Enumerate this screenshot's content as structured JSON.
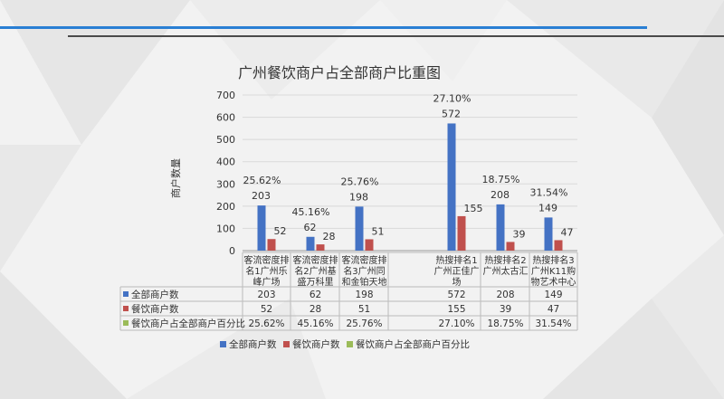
{
  "chart_data": {
    "type": "bar",
    "title": "广州餐饮商户占全部商户比重图",
    "ylabel": "商户数量",
    "ylim": [
      0,
      700
    ],
    "yticks": [
      0,
      100,
      200,
      300,
      400,
      500,
      600,
      700
    ],
    "grid": true,
    "legend_position": "bottom",
    "categories": [
      [
        "客流密度排",
        "名1广州乐",
        "峰广场"
      ],
      [
        "客流密度排",
        "名2广州基",
        "盛万科里"
      ],
      [
        "客流密度排",
        "名3广州同",
        "和金铂天地"
      ],
      [
        "热搜排名1",
        "广州正佳广",
        "场"
      ],
      [
        "热搜排名2",
        "广州太古汇"
      ],
      [
        "热搜排名3",
        "广州K11购",
        "物艺术中心"
      ]
    ],
    "series": [
      {
        "name": "全部商户数",
        "color": "#4472c4",
        "values": [
          203,
          62,
          198,
          572,
          208,
          149
        ],
        "labels": [
          "203",
          "62",
          "198",
          "572",
          "208",
          "149"
        ]
      },
      {
        "name": "餐饮商户数",
        "color": "#c0504d",
        "values": [
          52,
          28,
          51,
          155,
          39,
          47
        ],
        "labels": [
          "52",
          "28",
          "51",
          "155",
          "39",
          "47"
        ]
      },
      {
        "name": "餐饮商户占全部商户百分比",
        "color": "#9bbb59",
        "values": [
          0.2562,
          0.4516,
          0.2576,
          0.271,
          0.1875,
          0.3154
        ],
        "labels": [
          "25.62%",
          "45.16%",
          "25.76%",
          "27.10%",
          "18.75%",
          "31.54%"
        ]
      }
    ]
  }
}
